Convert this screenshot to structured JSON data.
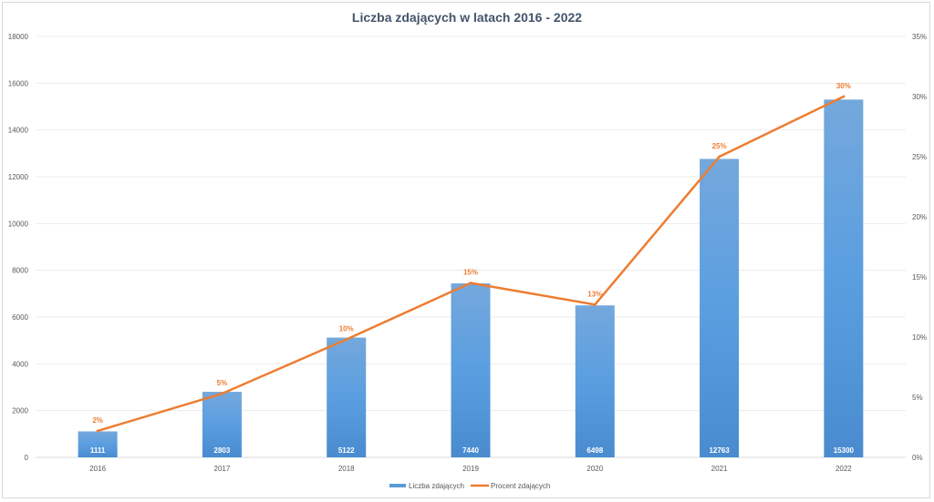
{
  "chart_data": {
    "type": "bar+line",
    "title": "Liczba zdających w latach 2016 - 2022",
    "categories": [
      "2016",
      "2017",
      "2018",
      "2019",
      "2020",
      "2021",
      "2022"
    ],
    "series": [
      {
        "name": "Liczba zdających",
        "type": "bar",
        "axis": "left",
        "values": [
          1111,
          2803,
          5122,
          7440,
          6498,
          12763,
          15300
        ],
        "color": "#5b9bd5"
      },
      {
        "name": "Procent zdających",
        "type": "line",
        "axis": "right",
        "values": [
          2.2,
          5.3,
          9.8,
          14.5,
          12.7,
          25,
          30
        ],
        "labels": [
          "2%",
          "5%",
          "10%",
          "15%",
          "13%",
          "25%",
          "30%"
        ],
        "color": "#ed7d31"
      }
    ],
    "y_left": {
      "min": 0,
      "max": 18000,
      "step": 2000,
      "ticks": [
        "0",
        "2000",
        "4000",
        "6000",
        "8000",
        "10000",
        "12000",
        "14000",
        "16000",
        "18000"
      ]
    },
    "y_right": {
      "min": 0,
      "max": 35,
      "step": 5,
      "ticks": [
        "0%",
        "5%",
        "10%",
        "15%",
        "20%",
        "25%",
        "30%",
        "35%"
      ]
    },
    "grid": true,
    "legend": "bottom"
  }
}
